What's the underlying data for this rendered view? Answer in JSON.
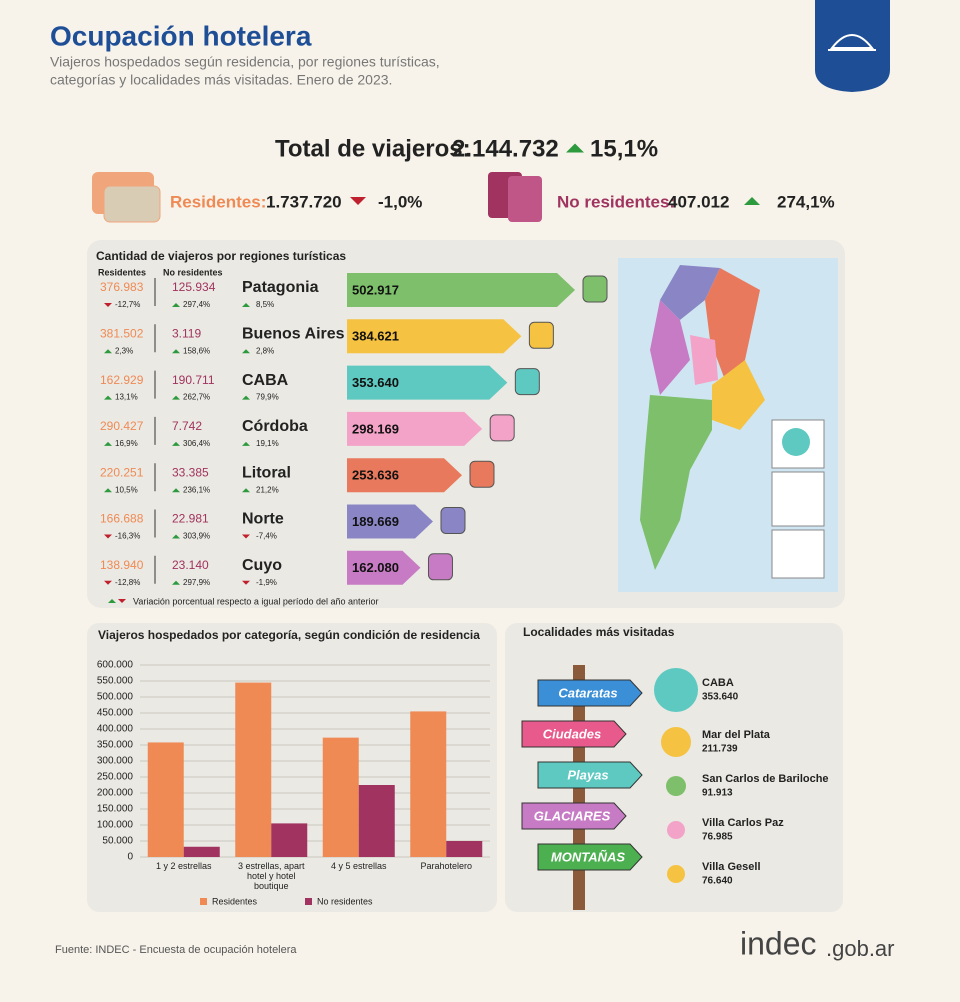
{
  "header": {
    "title": "Ocupación hotelera",
    "subtitle_1": "Viajeros hospedados según residencia, por regiones turísticas,",
    "subtitle_2": "categorías y localidades más visitadas. Enero de 2023."
  },
  "total": {
    "label": "Total de viajeros:",
    "value": "2.144.732",
    "change": "15,1%"
  },
  "residentes": {
    "label": "Residentes:",
    "value": "1.737.720",
    "change": "-1,0%"
  },
  "no_residentes": {
    "label": "No residentes:",
    "value": "407.012",
    "change": "274,1%"
  },
  "regions": {
    "title": "Cantidad de viajeros por regiones turísticas",
    "col_res": "Residentes",
    "col_nores": "No residentes",
    "note": "Variación porcentual respecto a igual período del año anterior",
    "rows": [
      {
        "name": "Patagonia",
        "res": "376.983",
        "res_change": "-12,7%",
        "nores": "125.934",
        "nores_change": "297,4%",
        "total": "502.917",
        "total_change": "8,5%",
        "color": "#7dbf6a"
      },
      {
        "name": "Buenos Aires",
        "res": "381.502",
        "res_change": "2,3%",
        "nores": "3.119",
        "nores_change": "158,6%",
        "total": "384.621",
        "total_change": "2,8%",
        "color": "#f5c242"
      },
      {
        "name": "CABA",
        "res": "162.929",
        "res_change": "13,1%",
        "nores": "190.711",
        "nores_change": "262,7%",
        "total": "353.640",
        "total_change": "79,9%",
        "color": "#5dc9c1"
      },
      {
        "name": "Córdoba",
        "res": "290.427",
        "res_change": "16,9%",
        "nores": "7.742",
        "nores_change": "306,4%",
        "total": "298.169",
        "total_change": "19,1%",
        "color": "#f3a3c8"
      },
      {
        "name": "Litoral",
        "res": "220.251",
        "res_change": "10,5%",
        "nores": "33.385",
        "nores_change": "236,1%",
        "total": "253.636",
        "total_change": "21,2%",
        "color": "#e8795c"
      },
      {
        "name": "Norte",
        "res": "166.688",
        "res_change": "-16,3%",
        "nores": "22.981",
        "nores_change": "303,9%",
        "total": "189.669",
        "total_change": "-7,4%",
        "color": "#8a86c6"
      },
      {
        "name": "Cuyo",
        "res": "138.940",
        "res_change": "-12,8%",
        "nores": "23.140",
        "nores_change": "297,9%",
        "total": "162.080",
        "total_change": "-1,9%",
        "color": "#c77bc5"
      }
    ]
  },
  "chart_data": {
    "type": "bar",
    "title": "Viajeros hospedados por categoría, según condición de residencia",
    "categories": [
      "1 y 2 estrellas",
      "3 estrellas, apart hotel y hotel boutique",
      "4 y 5 estrellas",
      "Parahotelero"
    ],
    "series": [
      {
        "name": "Residentes",
        "color": "#ef8a55",
        "values": [
          358000,
          545000,
          373000,
          455000
        ]
      },
      {
        "name": "No residentes",
        "color": "#a0335f",
        "values": [
          32000,
          105000,
          225000,
          50000
        ]
      }
    ],
    "ylim": [
      0,
      600000
    ],
    "yticks": [
      {
        "value": 0,
        "label": "0"
      },
      {
        "value": 50000,
        "label": "50.000"
      },
      {
        "value": 100000,
        "label": "100.000"
      },
      {
        "value": 150000,
        "label": "150.000"
      },
      {
        "value": 200000,
        "label": "200.000"
      },
      {
        "value": 250000,
        "label": "250.000"
      },
      {
        "value": 300000,
        "label": "300.000"
      },
      {
        "value": 350000,
        "label": "350.000"
      },
      {
        "value": 400000,
        "label": "400.000"
      },
      {
        "value": 450000,
        "label": "450.000"
      },
      {
        "value": 500000,
        "label": "500.000"
      },
      {
        "value": 550000,
        "label": "550.000"
      },
      {
        "value": 600000,
        "label": "600.000"
      }
    ],
    "grid": true,
    "legend": "bottom"
  },
  "localidades": {
    "title": "Localidades más visitadas",
    "signs": [
      "Cataratas",
      "Ciudades",
      "Playas",
      "GLACIARES",
      "MONTAÑAS"
    ],
    "items": [
      {
        "name": "CABA",
        "value": "353.640",
        "color": "#5dc9c1"
      },
      {
        "name": "Mar del Plata",
        "value": "211.739",
        "color": "#f5c242"
      },
      {
        "name": "San Carlos de Bariloche",
        "value": "91.913",
        "color": "#7dbf6a"
      },
      {
        "name": "Villa Carlos Paz",
        "value": "76.985",
        "color": "#f3a3c8"
      },
      {
        "name": "Villa Gesell",
        "value": "76.640",
        "color": "#f5c242"
      }
    ]
  },
  "footer": {
    "source": "Fuente: INDEC - Encuesta de ocupación hotelera",
    "logo": "indec",
    "logo_suffix": ".gob.ar"
  }
}
